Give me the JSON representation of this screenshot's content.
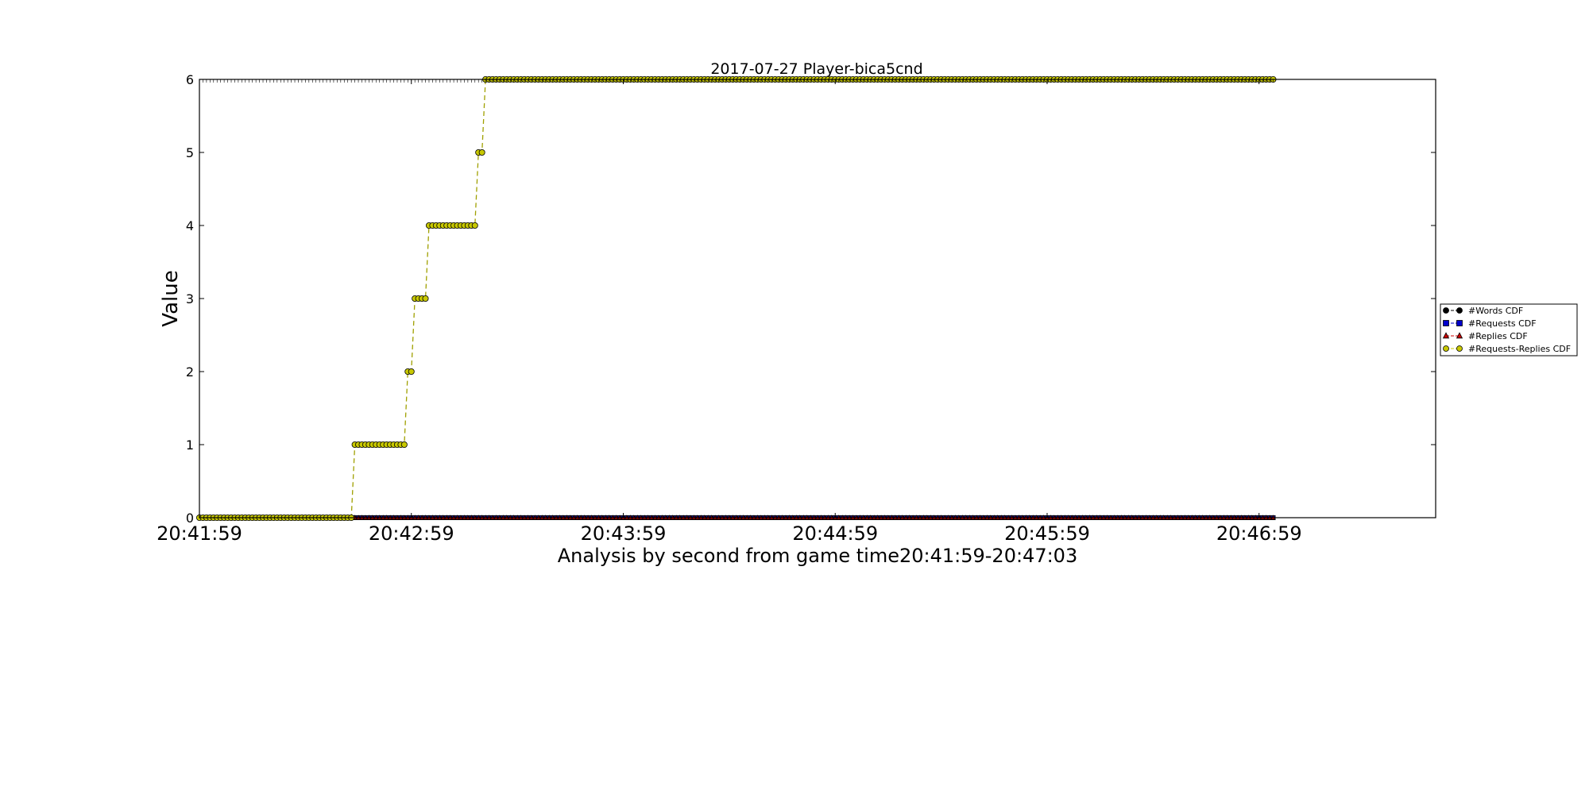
{
  "chart_data": {
    "type": "line",
    "title": "2017-07-27 Player-bica5cnd",
    "xlabel": "Analysis by second from game time20:41:59-20:47:03",
    "ylabel": "Value",
    "x_start": "20:41:59",
    "x_end": "20:47:03",
    "x_axis_end": "20:47:49",
    "x_ticks": [
      "20:41:59",
      "20:42:59",
      "20:43:59",
      "20:44:59",
      "20:45:59",
      "20:46:59"
    ],
    "ylim": [
      0,
      6
    ],
    "y_ticks": [
      0,
      1,
      2,
      3,
      4,
      5,
      6
    ],
    "grid": false,
    "legend_position": "right",
    "series": [
      {
        "name": "#Words CDF",
        "color": "#000000",
        "marker": "circle",
        "steps": [
          [
            "20:42:43",
            0
          ]
        ]
      },
      {
        "name": "#Requests CDF",
        "color": "#0000cc",
        "marker": "square",
        "steps": [
          [
            "20:42:43",
            0
          ]
        ]
      },
      {
        "name": "#Replies CDF",
        "color": "#cc0000",
        "marker": "triangle",
        "steps": [
          [
            "20:42:43",
            0
          ]
        ]
      },
      {
        "name": "#Requests-Replies CDF",
        "color": "#c8c800",
        "marker": "circle",
        "steps": [
          [
            "20:41:59",
            0
          ],
          [
            "20:42:43",
            1
          ],
          [
            "20:42:58",
            2
          ],
          [
            "20:43:00",
            3
          ],
          [
            "20:43:04",
            4
          ],
          [
            "20:43:18",
            5
          ],
          [
            "20:43:20",
            6
          ]
        ]
      }
    ]
  }
}
